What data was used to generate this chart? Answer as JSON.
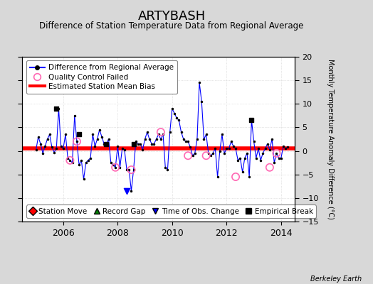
{
  "title": "ARTYBASH",
  "subtitle": "Difference of Station Temperature Data from Regional Average",
  "ylabel_right": "Monthly Temperature Anomaly Difference (°C)",
  "xlim": [
    2004.5,
    2014.5
  ],
  "ylim": [
    -15,
    20
  ],
  "yticks": [
    -15,
    -10,
    -5,
    0,
    5,
    10,
    15,
    20
  ],
  "xticks": [
    2006,
    2008,
    2010,
    2012,
    2014
  ],
  "bias_value": 0.5,
  "background_color": "#d8d8d8",
  "plot_bg_color": "#ffffff",
  "line_color": "#0000ff",
  "bias_color": "#ff0000",
  "qc_color": "#ff69b4",
  "data_x": [
    2005.0,
    2005.083,
    2005.167,
    2005.25,
    2005.333,
    2005.417,
    2005.5,
    2005.583,
    2005.667,
    2005.75,
    2005.833,
    2005.917,
    2006.0,
    2006.083,
    2006.167,
    2006.25,
    2006.333,
    2006.417,
    2006.5,
    2006.583,
    2006.667,
    2006.75,
    2006.833,
    2006.917,
    2007.0,
    2007.083,
    2007.167,
    2007.25,
    2007.333,
    2007.417,
    2007.5,
    2007.583,
    2007.667,
    2007.75,
    2007.833,
    2007.917,
    2008.0,
    2008.083,
    2008.167,
    2008.25,
    2008.333,
    2008.417,
    2008.5,
    2008.583,
    2008.667,
    2008.75,
    2008.833,
    2008.917,
    2009.0,
    2009.083,
    2009.167,
    2009.25,
    2009.333,
    2009.417,
    2009.5,
    2009.583,
    2009.667,
    2009.75,
    2009.833,
    2009.917,
    2010.0,
    2010.083,
    2010.167,
    2010.25,
    2010.333,
    2010.417,
    2010.5,
    2010.583,
    2010.667,
    2010.75,
    2010.833,
    2010.917,
    2011.0,
    2011.083,
    2011.167,
    2011.25,
    2011.333,
    2011.417,
    2011.5,
    2011.583,
    2011.667,
    2011.75,
    2011.833,
    2011.917,
    2012.0,
    2012.083,
    2012.167,
    2012.25,
    2012.333,
    2012.417,
    2012.5,
    2012.583,
    2012.667,
    2012.75,
    2012.833,
    2012.917,
    2013.0,
    2013.083,
    2013.167,
    2013.25,
    2013.333,
    2013.417,
    2013.5,
    2013.583,
    2013.667,
    2013.75,
    2013.833,
    2013.917,
    2014.0,
    2014.083,
    2014.167,
    2014.25
  ],
  "data_y": [
    0.2,
    3.0,
    1.5,
    -0.5,
    1.0,
    2.5,
    3.5,
    0.8,
    -0.3,
    0.5,
    9.0,
    1.0,
    0.5,
    3.5,
    -1.5,
    -2.0,
    -2.5,
    7.5,
    2.0,
    -3.0,
    -2.0,
    -6.0,
    -2.5,
    -2.0,
    -1.5,
    3.5,
    1.0,
    2.5,
    4.5,
    3.0,
    1.5,
    1.5,
    2.5,
    -2.5,
    -3.0,
    -3.5,
    1.0,
    -3.5,
    0.5,
    0.2,
    -4.0,
    -4.0,
    -8.5,
    -4.0,
    2.0,
    1.5,
    1.5,
    0.3,
    2.5,
    4.0,
    2.5,
    1.5,
    1.5,
    2.5,
    3.5,
    2.5,
    3.5,
    -3.5,
    -4.0,
    4.0,
    9.0,
    8.0,
    7.0,
    6.5,
    4.0,
    2.5,
    2.0,
    2.0,
    0.8,
    -1.0,
    -0.5,
    2.5,
    14.5,
    10.5,
    2.5,
    3.5,
    -0.5,
    -1.0,
    -0.5,
    0.5,
    -5.5,
    0.0,
    3.5,
    -0.5,
    0.5,
    0.5,
    2.0,
    1.0,
    0.5,
    -2.0,
    -1.5,
    -4.5,
    -1.5,
    -0.5,
    -5.5,
    6.5,
    2.0,
    -1.5,
    0.5,
    -2.0,
    -0.5,
    0.5,
    1.5,
    0.3,
    2.5,
    -2.5,
    -0.5,
    -1.5,
    -1.5,
    1.0,
    0.5,
    0.8
  ],
  "qc_failed_x": [
    2006.25,
    2006.5,
    2007.917,
    2008.5,
    2009.583,
    2010.583,
    2011.25,
    2012.333,
    2013.583,
    2013.833
  ],
  "qc_failed_y": [
    -2.0,
    2.0,
    -3.5,
    -4.0,
    4.0,
    -1.0,
    -1.0,
    -5.5,
    -3.5,
    -0.5
  ],
  "empirical_break_x": [
    2005.75,
    2006.583,
    2007.583,
    2008.583,
    2012.917
  ],
  "empirical_break_y": [
    9.0,
    3.5,
    1.5,
    1.5,
    6.5
  ],
  "time_obs_change_x": [
    2008.333
  ],
  "time_obs_change_y": [
    -8.5
  ],
  "berkeley_earth_text": "Berkeley Earth",
  "legend_fontsize": 7.5,
  "title_fontsize": 13,
  "subtitle_fontsize": 8.5
}
